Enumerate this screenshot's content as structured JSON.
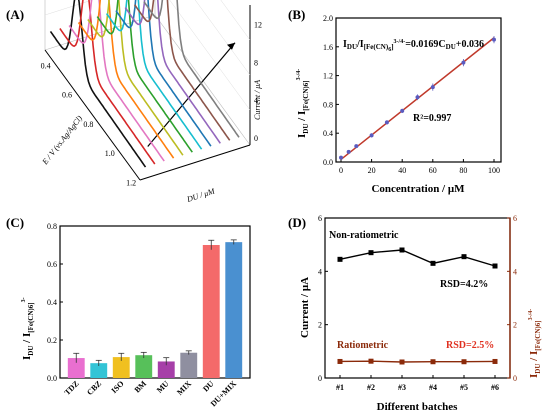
{
  "panels": {
    "A": {
      "label": "(A)"
    },
    "B": {
      "label": "(B)"
    },
    "C": {
      "label": "(C)"
    },
    "D": {
      "label": "(D)"
    }
  },
  "chart_data": [
    {
      "panel": "A",
      "type": "line",
      "kind": "3D waterfall of voltammograms",
      "xlabel": "E / V (vs.Ag/AgCl)",
      "ylabel": "DU / μM",
      "zlabel": "Current / μA",
      "x_ticks": [
        "1.2",
        "1.0",
        "0.8",
        "0.6",
        "0.4"
      ],
      "z_ticks": [
        "0",
        "4",
        "8",
        "12"
      ],
      "series_count": 11,
      "series_colors": [
        "#111111",
        "#d62728",
        "#e377c2",
        "#ff7f0e",
        "#bcbd22",
        "#2ca02c",
        "#17becf",
        "#1f77b4",
        "#9467bd",
        "#8c564b",
        "#7f7f7f"
      ]
    },
    {
      "panel": "B",
      "type": "scatter",
      "xlabel": "Concentration / μM",
      "ylabel": "I",
      "ylabel_sub": "DU",
      "ylabel_mid": " / I",
      "ylabel_sub2": "[Fe(CN)6]",
      "ylabel_sup2": "3-/4-",
      "x": [
        0,
        5,
        10,
        20,
        30,
        40,
        50,
        60,
        80,
        100
      ],
      "y": [
        0.06,
        0.14,
        0.22,
        0.37,
        0.55,
        0.71,
        0.9,
        1.04,
        1.38,
        1.7
      ],
      "yerr": [
        0.02,
        0.02,
        0.02,
        0.03,
        0.03,
        0.03,
        0.04,
        0.05,
        0.05,
        0.05
      ],
      "fit": {
        "slope": 0.0169,
        "intercept": 0.036
      },
      "equation_text": "I_DU/I_[Fe(CN)6]^3-/4- =0.0169C_DU+0.036",
      "r2_text": "R²=0.997",
      "xlim": [
        0,
        100
      ],
      "ylim": [
        0.0,
        2.0
      ],
      "x_ticks": [
        "0",
        "20",
        "40",
        "60",
        "80",
        "100"
      ],
      "y_ticks": [
        "0.0",
        "0.4",
        "0.8",
        "1.2",
        "1.6",
        "2.0"
      ],
      "colors": {
        "line": "#c0392b",
        "marker": "#5b5bbf"
      }
    },
    {
      "panel": "C",
      "type": "bar",
      "ylabel": "I",
      "ylabel_sub": "DU",
      "ylabel_mid": " / I",
      "ylabel_sub2": "[Fe(CN)6]",
      "ylabel_sup2": "3-",
      "categories": [
        "TDZ",
        "CBZ",
        "ISO",
        "BM",
        "MU",
        "MIX",
        "DU",
        "DU+MIX"
      ],
      "values": [
        0.105,
        0.078,
        0.11,
        0.12,
        0.087,
        0.133,
        0.7,
        0.715
      ],
      "errors": [
        0.025,
        0.015,
        0.02,
        0.015,
        0.02,
        0.01,
        0.025,
        0.012
      ],
      "colors": [
        "#e96fd0",
        "#33c4d6",
        "#f0c020",
        "#57c05a",
        "#a63fa8",
        "#8f8fa0",
        "#f46a6a",
        "#4a90d0"
      ],
      "ylim": [
        0.0,
        0.8
      ],
      "y_ticks": [
        "0.0",
        "0.2",
        "0.4",
        "0.6",
        "0.8"
      ]
    },
    {
      "panel": "D",
      "type": "line",
      "xlabel": "Different batches",
      "ylabel": "Current / μA",
      "ylabel_right": "I",
      "ylabel_right_sub": "DU",
      "ylabel_right_mid": " / I",
      "ylabel_right_sub2": "[Fe(CN)6]",
      "ylabel_right_sup2": "3-/4-",
      "categories": [
        "#1",
        "#2",
        "#3",
        "#4",
        "#5",
        "#6"
      ],
      "series": [
        {
          "name": "Non-ratiometric",
          "values": [
            4.45,
            4.7,
            4.8,
            4.3,
            4.55,
            4.2
          ],
          "color": "#000000",
          "axis": "left",
          "rsd": "RSD=4.2%"
        },
        {
          "name": "Ratiometric",
          "values": [
            0.62,
            0.63,
            0.6,
            0.61,
            0.61,
            0.62
          ],
          "color": "#8b2a0a",
          "axis": "right",
          "rsd": "RSD=2.5%"
        }
      ],
      "ylim_left": [
        0,
        6
      ],
      "ylim_right": [
        0,
        6
      ],
      "y_ticks_left": [
        "0",
        "2",
        "4",
        "6"
      ],
      "y_ticks_right": [
        "0",
        "2",
        "4",
        "6"
      ],
      "colors": {
        "right_axis": "#8b2a0a",
        "rsd_ratiometric": "#e03020"
      }
    }
  ]
}
